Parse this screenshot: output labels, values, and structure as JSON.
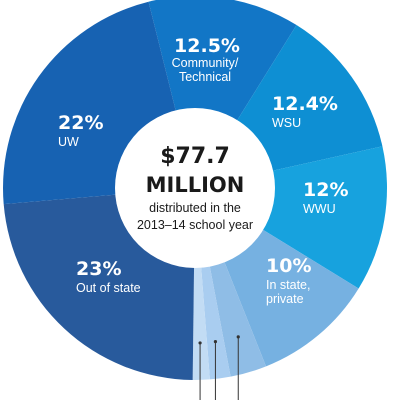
{
  "chart_data": {
    "type": "pie",
    "title": "",
    "center": {
      "amount": "$77.7",
      "unit": "MILLION",
      "caption_line1": "distributed in the",
      "caption_line2": "2013–14 school year"
    },
    "slices": [
      {
        "pct_label": "12.5%",
        "label_lines": [
          "Community/",
          "Technical"
        ],
        "value": 12.5,
        "color": "#1276c6"
      },
      {
        "pct_label": "12.4%",
        "label_lines": [
          "WSU"
        ],
        "value": 12.4,
        "color": "#0e8fd3"
      },
      {
        "pct_label": "12%",
        "label_lines": [
          "WWU"
        ],
        "value": 12.0,
        "color": "#17a2de"
      },
      {
        "pct_label": "10%",
        "label_lines": [
          "In state,",
          "private"
        ],
        "value": 10.0,
        "color": "#76b1e1"
      },
      {
        "pct_label": "",
        "label_lines": [],
        "value": 3.0,
        "color": "#8fbde6"
      },
      {
        "pct_label": "",
        "label_lines": [],
        "value": 1.7,
        "color": "#a9cdf0"
      },
      {
        "pct_label": "",
        "label_lines": [],
        "value": 1.4,
        "color": "#c2dcf4"
      },
      {
        "pct_label": "23%",
        "label_lines": [
          "Out of state"
        ],
        "value": 23.0,
        "color": "#285a9c"
      },
      {
        "pct_label": "22%",
        "label_lines": [
          "UW"
        ],
        "value": 22.0,
        "color": "#1762b2"
      }
    ]
  }
}
